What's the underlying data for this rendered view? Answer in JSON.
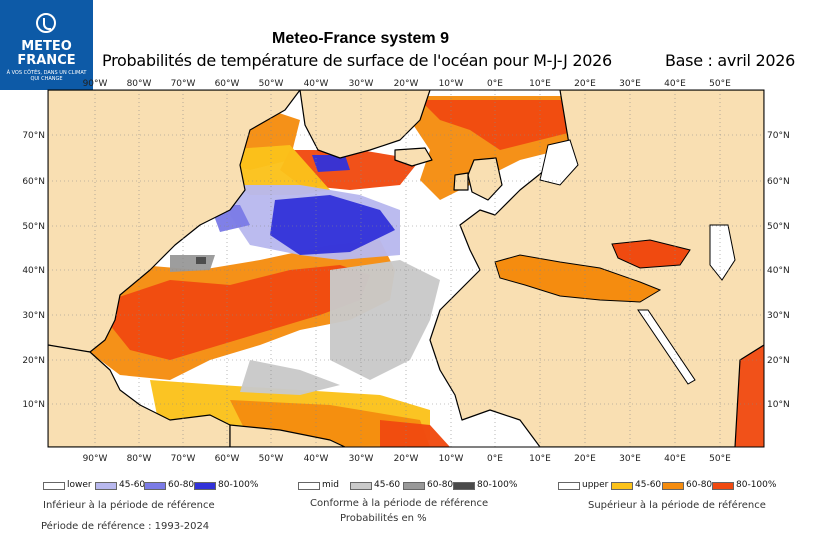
{
  "logo": {
    "name_line1": "METEO",
    "name_line2": "FRANCE",
    "tagline": "À VOS CÔTÉS, DANS UN CLIMAT QUI CHANGE"
  },
  "header": {
    "title": "Meteo-France system 9",
    "subtitle": "Probabilités de température de surface de l'océan pour M-J-J 2026",
    "base": "Base : avril 2026"
  },
  "map": {
    "lon_ticks_top": [
      "90°W",
      "80°W",
      "70°W",
      "60°W",
      "50°W",
      "40°W",
      "30°W",
      "20°W",
      "10°W",
      "0°E",
      "10°E",
      "20°E",
      "30°E",
      "40°E",
      "50°E"
    ],
    "lon_ticks_bottom": [
      "90°W",
      "80°W",
      "70°W",
      "60°W",
      "50°W",
      "40°W",
      "30°W",
      "20°W",
      "10°W",
      "0°E",
      "10°E",
      "20°E",
      "30°E",
      "40°E",
      "50°E"
    ],
    "lat_ticks_left": [
      "70°N",
      "60°N",
      "50°N",
      "40°N",
      "30°N",
      "20°N",
      "10°N"
    ],
    "lat_ticks_right": [
      "70°N",
      "60°N",
      "50°N",
      "40°N",
      "30°N",
      "20°N",
      "10°N"
    ],
    "colors": {
      "land": "#f9dfb2",
      "ocean_neutral": "#ffffff",
      "lower_45_60": "#b8b8ee",
      "lower_60_80": "#7b7be6",
      "lower_80_100": "#3232d8",
      "mid_45_60": "#c9c9c9",
      "mid_60_80": "#999999",
      "mid_80_100": "#4a4a4a",
      "upper_45_60": "#fbc21a",
      "upper_60_80": "#f58c0f",
      "upper_80_100": "#f04a10"
    }
  },
  "legend": {
    "lower": {
      "label": "lower",
      "bins": [
        "45-60",
        "60-80",
        "80-100%"
      ],
      "caption": "Inférieur à la période de référence"
    },
    "mid": {
      "label": "mid",
      "bins": [
        "45-60",
        "60-80",
        "80-100%"
      ],
      "caption": "Conforme à la période de référence"
    },
    "upper": {
      "label": "upper",
      "bins": [
        "45-60",
        "60-80",
        "80-100%"
      ],
      "caption": "Supérieur à la période de référence"
    },
    "units_caption": "Probabilités en %",
    "reference_period": "Période de référence : 1993-2024"
  }
}
